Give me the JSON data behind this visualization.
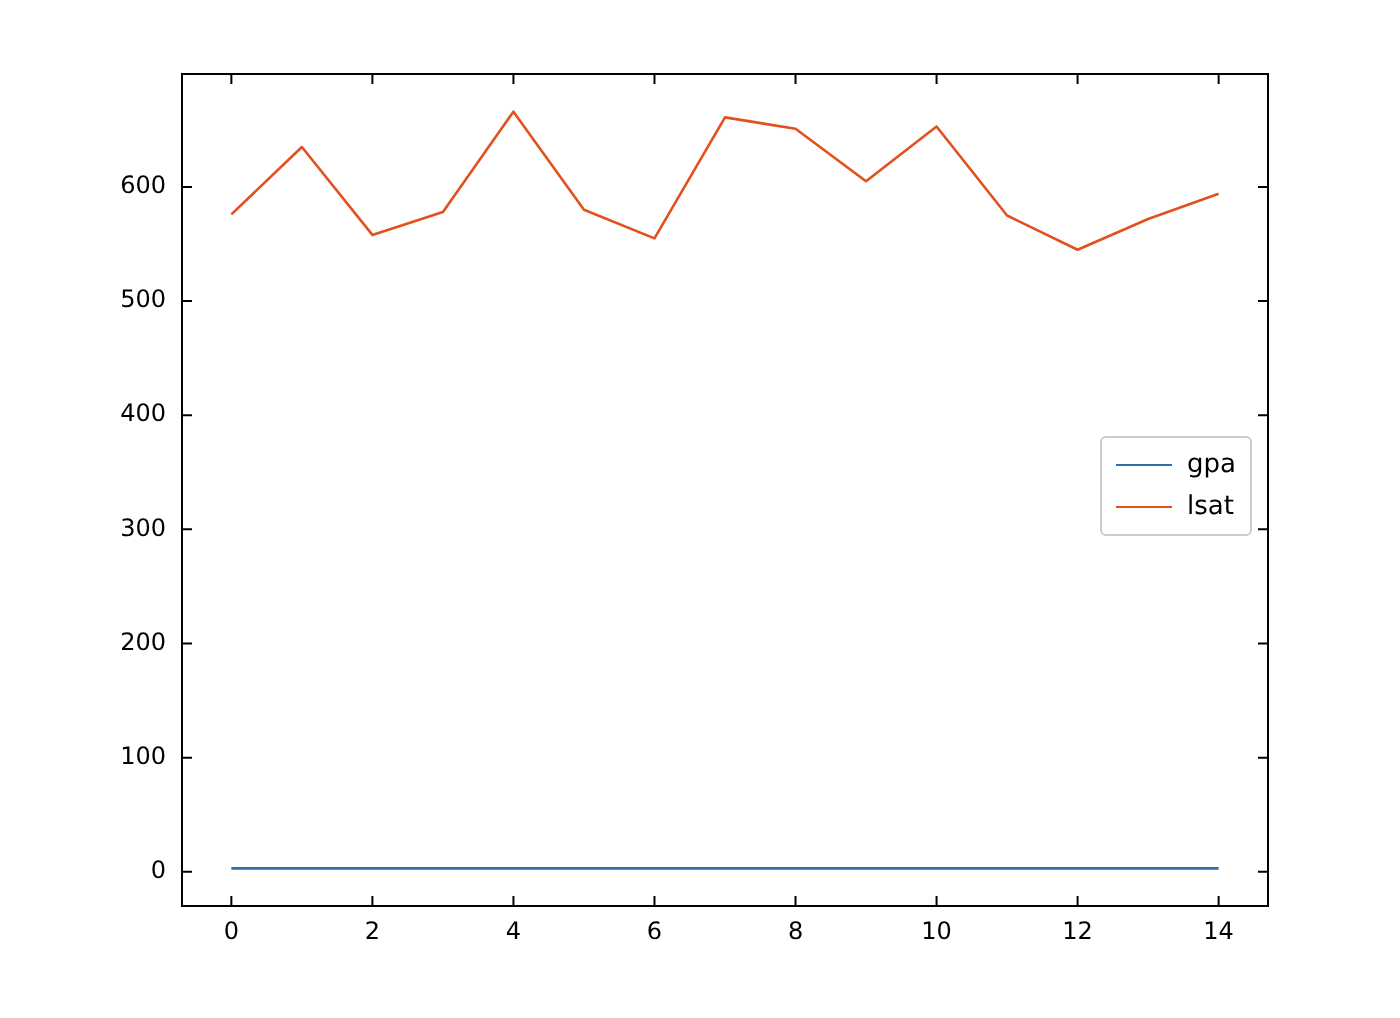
{
  "chart_data": {
    "type": "line",
    "x": [
      0,
      1,
      2,
      3,
      4,
      5,
      6,
      7,
      8,
      9,
      10,
      11,
      12,
      13,
      14
    ],
    "series": [
      {
        "name": "gpa",
        "color": "#2f6eab",
        "values": [
          3,
          3,
          3,
          3,
          3,
          3,
          3,
          3,
          3,
          3,
          3,
          3,
          3,
          3,
          3
        ]
      },
      {
        "name": "lsat",
        "color": "#e2501d",
        "values": [
          576,
          635,
          558,
          578,
          666,
          580,
          555,
          661,
          651,
          605,
          653,
          575,
          545,
          572,
          594
        ]
      }
    ],
    "xlim": [
      -0.7,
      14.7
    ],
    "xticks": [
      0,
      2,
      4,
      6,
      8,
      10,
      12,
      14
    ],
    "ylim": [
      -30,
      699
    ],
    "yticks": [
      0,
      100,
      200,
      300,
      400,
      500,
      600
    ],
    "grid": false,
    "legend": "right",
    "marker": "none",
    "line_style": "solid"
  }
}
